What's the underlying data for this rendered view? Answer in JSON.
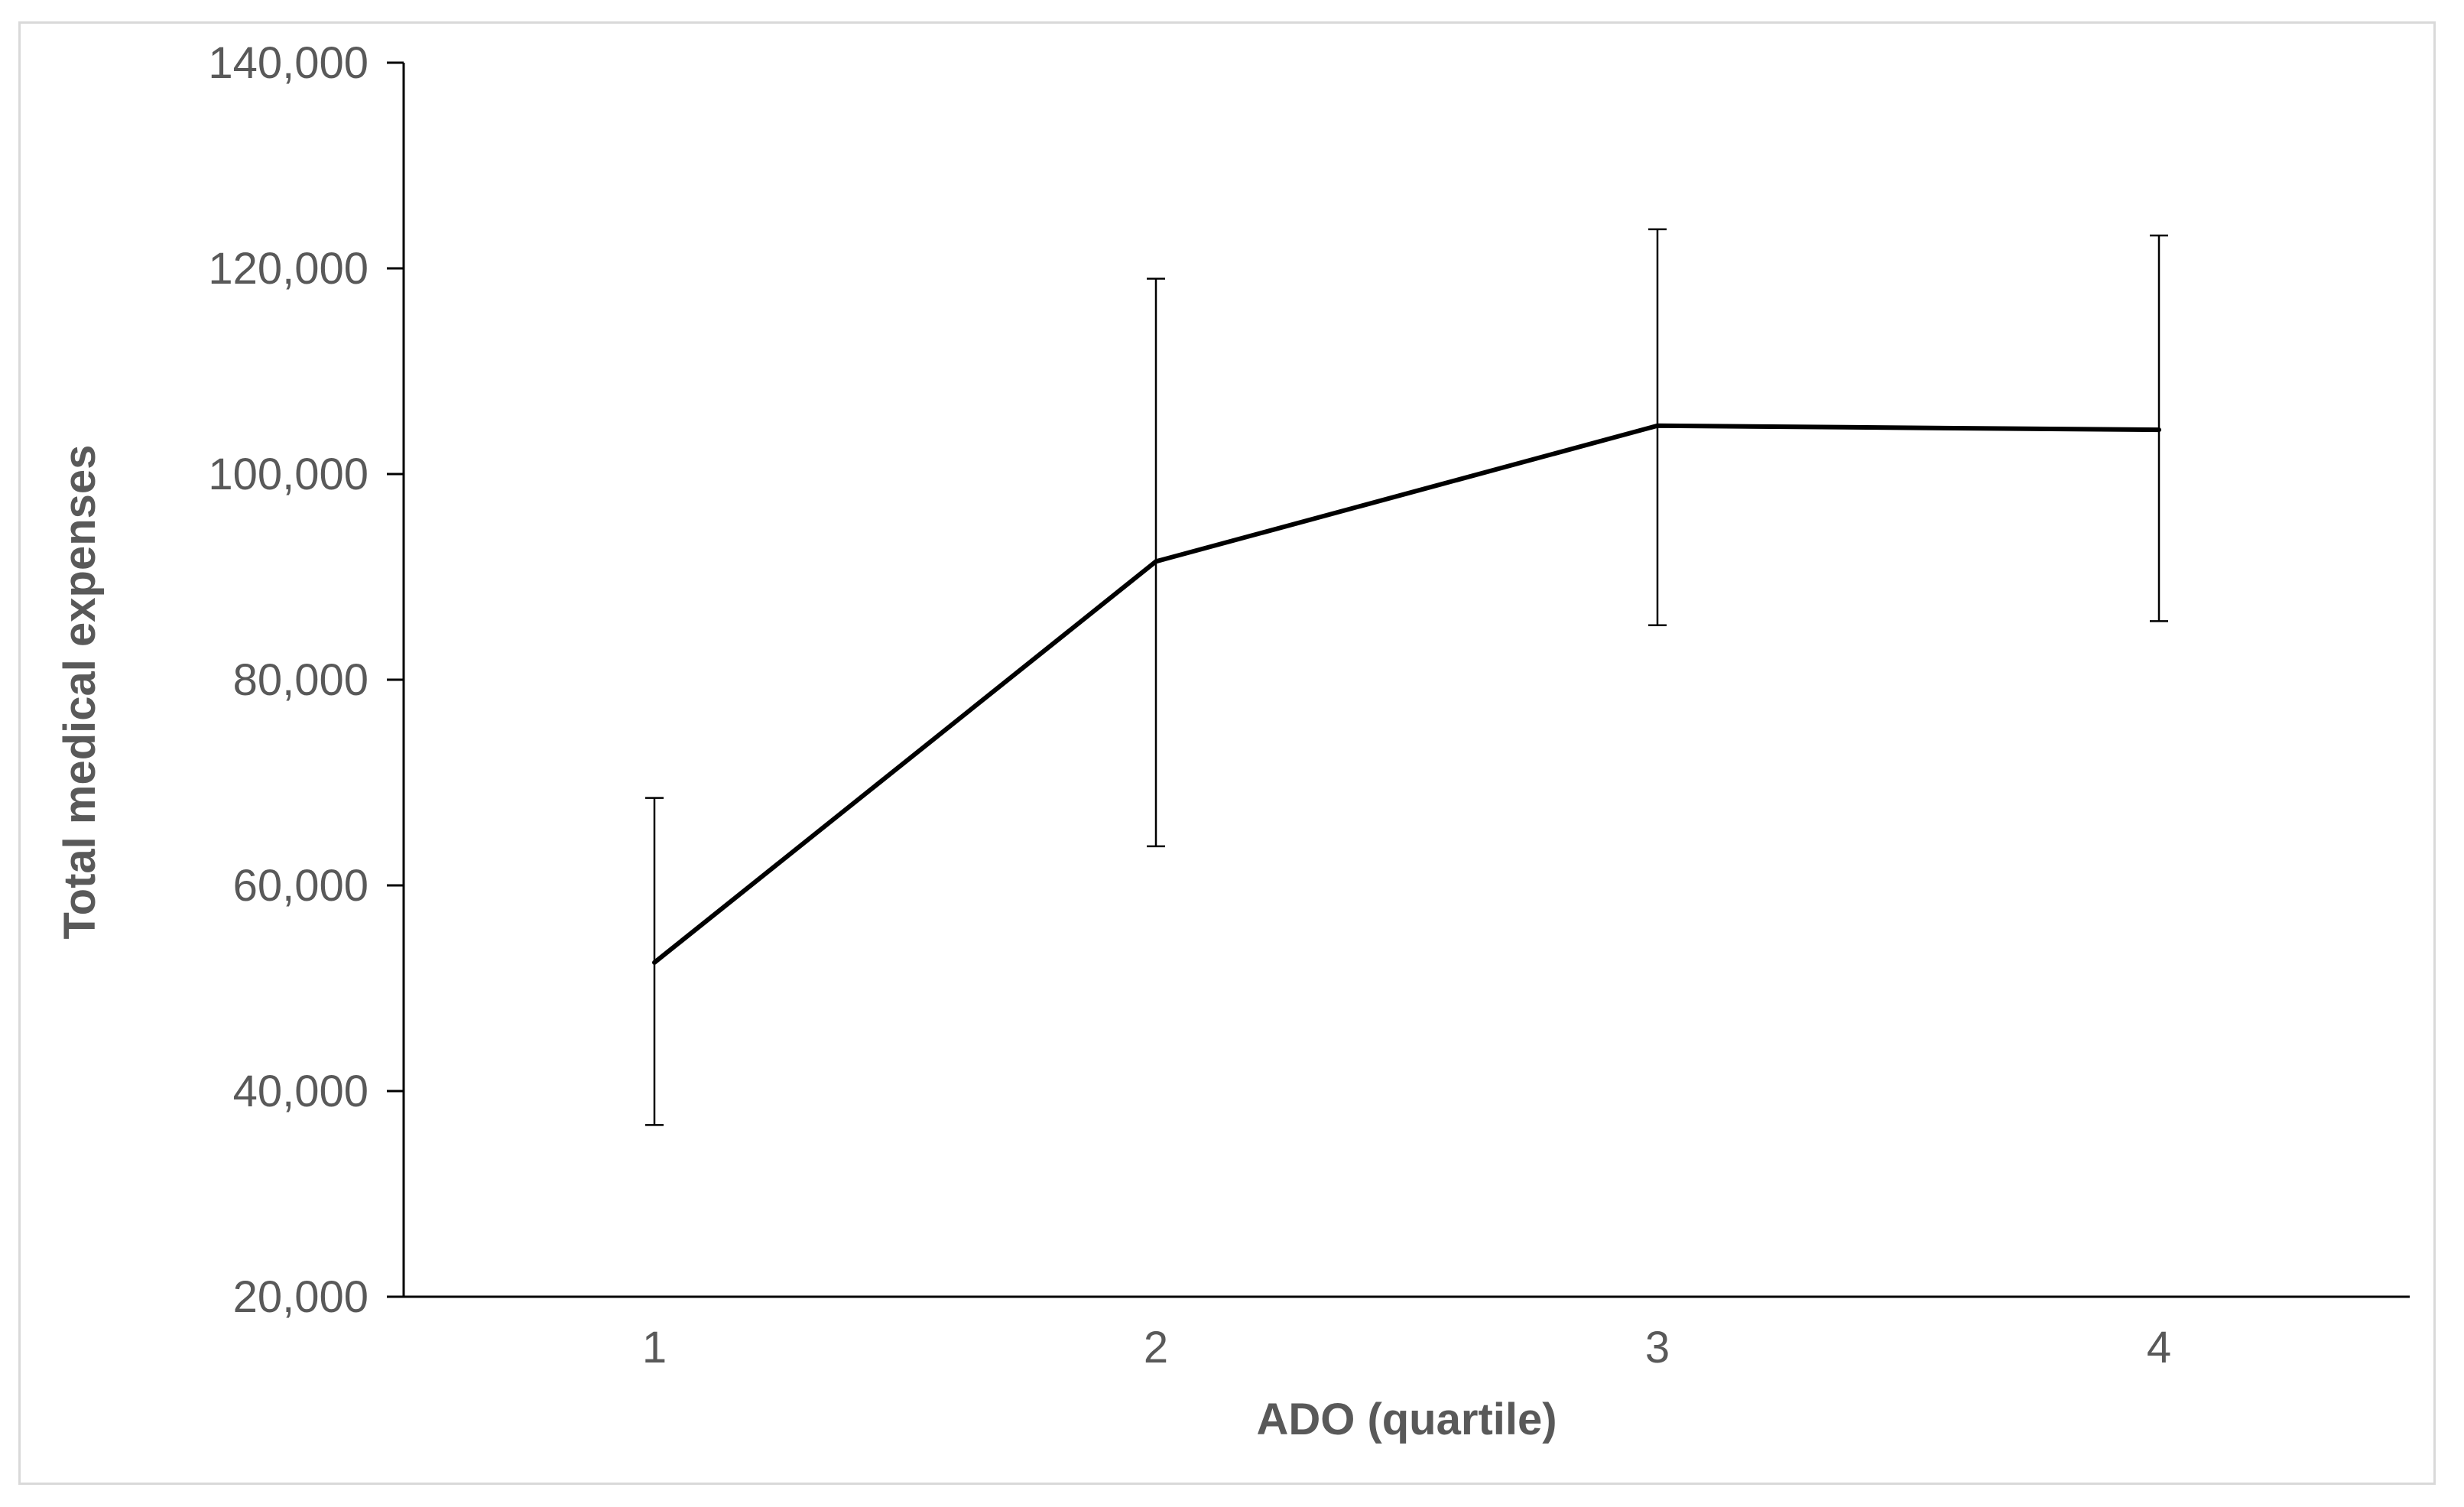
{
  "chart_data": {
    "type": "line",
    "title": "",
    "xlabel": "ADO (quartile)",
    "ylabel": "Total medical expenses",
    "categories": [
      "1",
      "2",
      "3",
      "4"
    ],
    "x_tick_labels": [
      "1",
      "2",
      "3",
      "4"
    ],
    "y_tick_labels": [
      "20,000",
      "40,000",
      "60,000",
      "80,000",
      "100,000",
      "120,000",
      "140,000"
    ],
    "y_ticks": [
      20000,
      40000,
      60000,
      80000,
      100000,
      120000,
      140000
    ],
    "ylim": [
      20000,
      140000
    ],
    "grid": false,
    "legend": "none",
    "series": [
      {
        "values": [
          52500,
          91500,
          104700,
          104300
        ],
        "error_low": [
          36700,
          63800,
          85300,
          85700
        ],
        "error_high": [
          68500,
          119000,
          123800,
          123200
        ],
        "color": "#000000"
      }
    ],
    "colors": {
      "axis": "#000000",
      "text": "#595959",
      "border": "#d9d9d9"
    }
  }
}
